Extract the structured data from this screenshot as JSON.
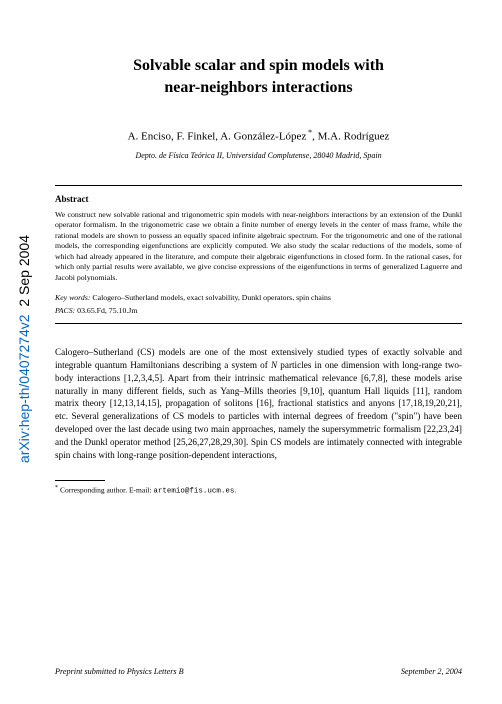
{
  "arxiv": {
    "id": "arXiv:hep-th/0407274v2",
    "date": "2 Sep 2004"
  },
  "title_line1": "Solvable scalar and spin models with",
  "title_line2": "near-neighbors interactions",
  "authors": "A. Enciso, F. Finkel, A. González-López *, M.A. Rodríguez",
  "affiliation": "Depto. de Física Teórica II, Universidad Complutense, 28040 Madrid, Spain",
  "abstract": {
    "heading": "Abstract",
    "body": "We construct new solvable rational and trigonometric spin models with near-neighbors interactions by an extension of the Dunkl operator formalism. In the trigonometric case we obtain a finite number of energy levels in the center of mass frame, while the rational models are shown to possess an equally spaced infinite algebraic spectrum. For the trigonometric and one of the rational models, the corresponding eigenfunctions are explicitly computed. We also study the scalar reductions of the models, some of which had already appeared in the literature, and compute their algebraic eigenfunctions in closed form. In the rational cases, for which only partial results were available, we give concise expressions of the eigenfunctions in terms of generalized Laguerre and Jacobi polynomials."
  },
  "keywords": {
    "label": "Key words:",
    "value": "Calogero–Sutherland models, exact solvability, Dunkl operators, spin chains"
  },
  "pacs": {
    "label": "PACS:",
    "value": "03.65.Fd, 75.10.Jm"
  },
  "body": "Calogero–Sutherland (CS) models are one of the most extensively studied types of exactly solvable and integrable quantum Hamiltonians describing a system of N particles in one dimension with long-range two-body interactions [1,2,3,4,5]. Apart from their intrinsic mathematical relevance [6,7,8], these models arise naturally in many different fields, such as Yang–Mills theories [9,10], quantum Hall liquids [11], random matrix theory [12,13,14,15], propagation of solitons [16], fractional statistics and anyons [17,18,19,20,21], etc. Several generalizations of CS models to particles with internal degrees of freedom (\"spin\") have been developed over the last decade using two main approaches, namely the supersymmetric formalism [22,23,24] and the Dunkl operator method [25,26,27,28,29,30]. Spin CS models are intimately connected with integrable spin chains with long-range position-dependent interactions,",
  "footnote": {
    "marker": "*",
    "text": "Corresponding author. E-mail:",
    "email": "artemio@fis.ucm.es",
    "suffix": "."
  },
  "footer": {
    "left": "Preprint submitted to Physics Letters B",
    "right": "September 2, 2004"
  },
  "colors": {
    "link": "#0066cc",
    "text": "#000000",
    "background": "#ffffff"
  },
  "typography": {
    "title_fontsize": 16,
    "authors_fontsize": 11,
    "affiliation_fontsize": 8,
    "abstract_fontsize": 7.8,
    "body_fontsize": 9.2,
    "footnote_fontsize": 7.5,
    "footer_fontsize": 8.2
  }
}
